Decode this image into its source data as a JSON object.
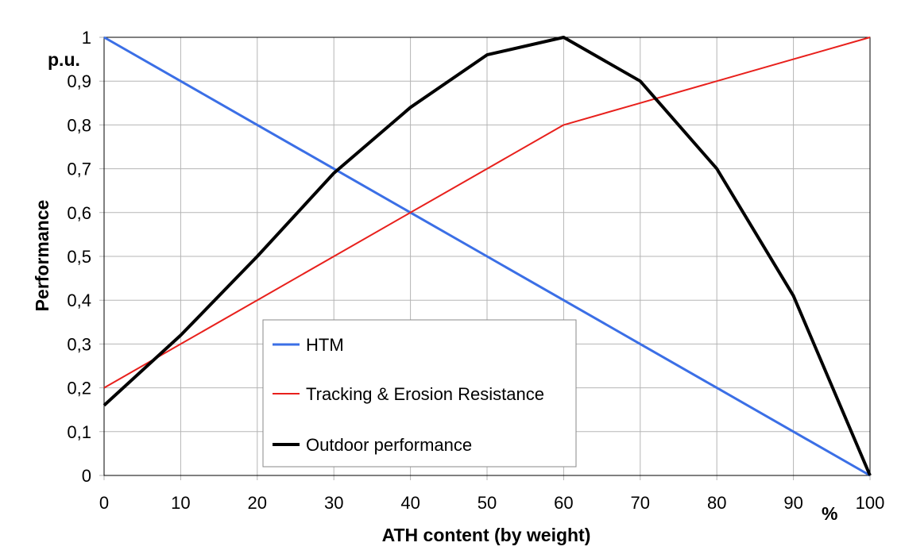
{
  "chart_data": {
    "type": "line",
    "title": "",
    "xlabel": "ATH content (by weight)",
    "ylabel": "Performance",
    "x_unit": "%",
    "y_unit": "p.u.",
    "xlim": [
      0,
      100
    ],
    "ylim": [
      0,
      1
    ],
    "grid": true,
    "x": [
      0,
      10,
      20,
      30,
      40,
      50,
      60,
      70,
      80,
      90,
      100
    ],
    "x_tick_labels": [
      "0",
      "10",
      "20",
      "30",
      "40",
      "50",
      "60",
      "70",
      "80",
      "90",
      "100"
    ],
    "y_tick_values": [
      0,
      0.1,
      0.2,
      0.3,
      0.4,
      0.5,
      0.6,
      0.7,
      0.8,
      0.9,
      1
    ],
    "y_tick_labels": [
      "0",
      "0,1",
      "0,2",
      "0,3",
      "0,4",
      "0,5",
      "0,6",
      "0,7",
      "0,8",
      "0,9",
      "1"
    ],
    "legend_position": "lower-center-left",
    "series": [
      {
        "name": "HTM",
        "color": "#3b6fe6",
        "values": [
          1.0,
          0.9,
          0.8,
          0.7,
          0.6,
          0.5,
          0.4,
          0.3,
          0.2,
          0.1,
          0.0
        ]
      },
      {
        "name": "Tracking & Erosion Resistance",
        "color": "#e8201c",
        "values": [
          0.2,
          0.3,
          0.4,
          0.5,
          0.6,
          0.7,
          0.8,
          0.85,
          0.9,
          0.95,
          1.0
        ]
      },
      {
        "name": "Outdoor performance",
        "color": "#000000",
        "values": [
          0.16,
          0.32,
          0.5,
          0.69,
          0.84,
          0.96,
          1.0,
          0.9,
          0.7,
          0.41,
          0.0
        ]
      }
    ]
  }
}
